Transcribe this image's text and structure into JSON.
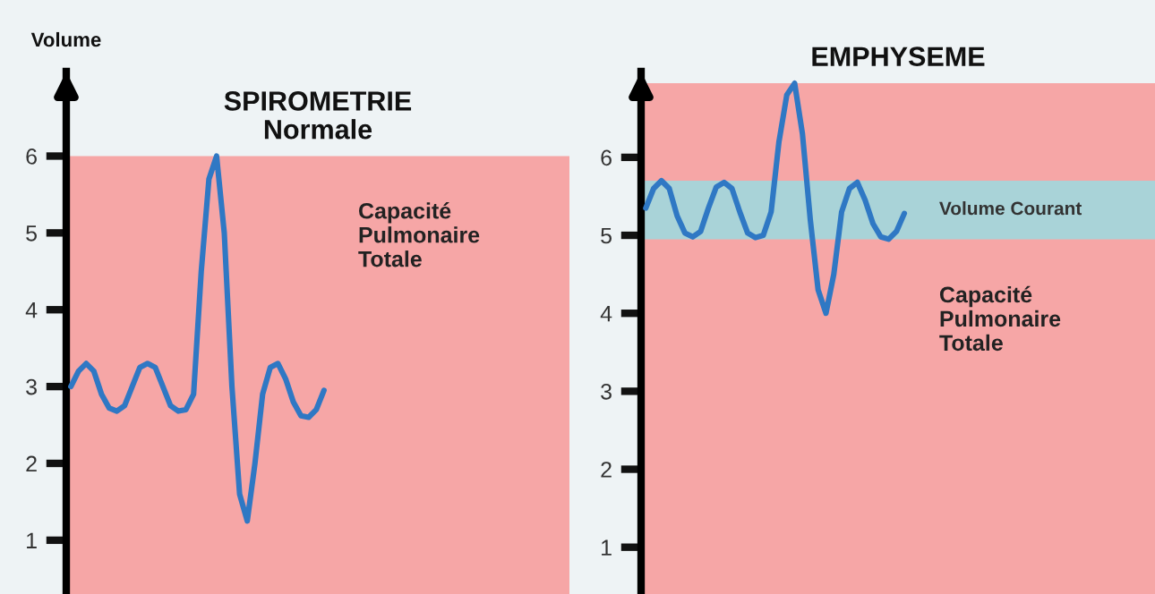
{
  "chart_data": [
    {
      "type": "line",
      "title": "SPIROMETRIE\nNormale",
      "ylabel": "Volume",
      "categories": [
        null,
        null,
        null,
        null,
        null,
        null,
        null,
        null,
        null,
        null,
        null,
        null,
        null,
        null,
        null,
        null,
        null,
        null,
        null,
        null,
        null,
        null,
        null,
        null,
        null,
        null,
        null,
        null,
        null,
        null,
        null,
        null,
        null,
        null
      ],
      "series": [
        {
          "color": "#2f78c4",
          "values": [
            3.0,
            3.2,
            3.3,
            3.2,
            2.9,
            2.72,
            2.68,
            2.75,
            3.0,
            3.25,
            3.3,
            3.25,
            3.0,
            2.75,
            2.68,
            2.7,
            2.9,
            4.5,
            5.7,
            6.0,
            5.0,
            3.0,
            1.6,
            1.25,
            2.0,
            2.9,
            3.25,
            3.3,
            3.1,
            2.8,
            2.62,
            2.6,
            2.7,
            2.95
          ]
        }
      ],
      "ylim": [
        0.3,
        7.1
      ],
      "yticks": [
        1,
        2,
        3,
        4,
        5,
        6
      ],
      "bands": [
        {
          "axis": "y",
          "from": 0.3,
          "to": 6,
          "label": "Capacité Pulmonaire Totale",
          "color": "#f6a6a6"
        }
      ],
      "tick_labels": "y"
    },
    {
      "type": "line",
      "title": "EMPHYSEME",
      "categories": [
        null,
        null,
        null,
        null,
        null,
        null,
        null,
        null,
        null,
        null,
        null,
        null,
        null,
        null,
        null,
        null,
        null,
        null,
        null,
        null,
        null,
        null,
        null,
        null,
        null,
        null,
        null,
        null,
        null,
        null,
        null,
        null,
        null,
        null
      ],
      "series": [
        {
          "color": "#2f78c4",
          "values": [
            5.35,
            5.6,
            5.7,
            5.6,
            5.25,
            5.03,
            4.98,
            5.05,
            5.35,
            5.62,
            5.68,
            5.6,
            5.3,
            5.03,
            4.97,
            5.0,
            5.3,
            6.2,
            6.8,
            6.95,
            6.3,
            5.2,
            4.3,
            4.0,
            4.5,
            5.3,
            5.6,
            5.68,
            5.45,
            5.15,
            4.98,
            4.95,
            5.05,
            5.28
          ]
        }
      ],
      "ylim": [
        0.4,
        7.1
      ],
      "yticks": [
        1,
        2,
        3,
        4,
        5,
        6
      ],
      "bands": [
        {
          "axis": "y",
          "from": 0.4,
          "to": 6.95,
          "label": "Capacité Pulmonaire Totale",
          "color": "#f6a6a6"
        },
        {
          "axis": "y",
          "from": 4.95,
          "to": 5.7,
          "label": "Volume Courant",
          "color": "#a9d3d8"
        }
      ],
      "tick_labels": "y"
    }
  ]
}
